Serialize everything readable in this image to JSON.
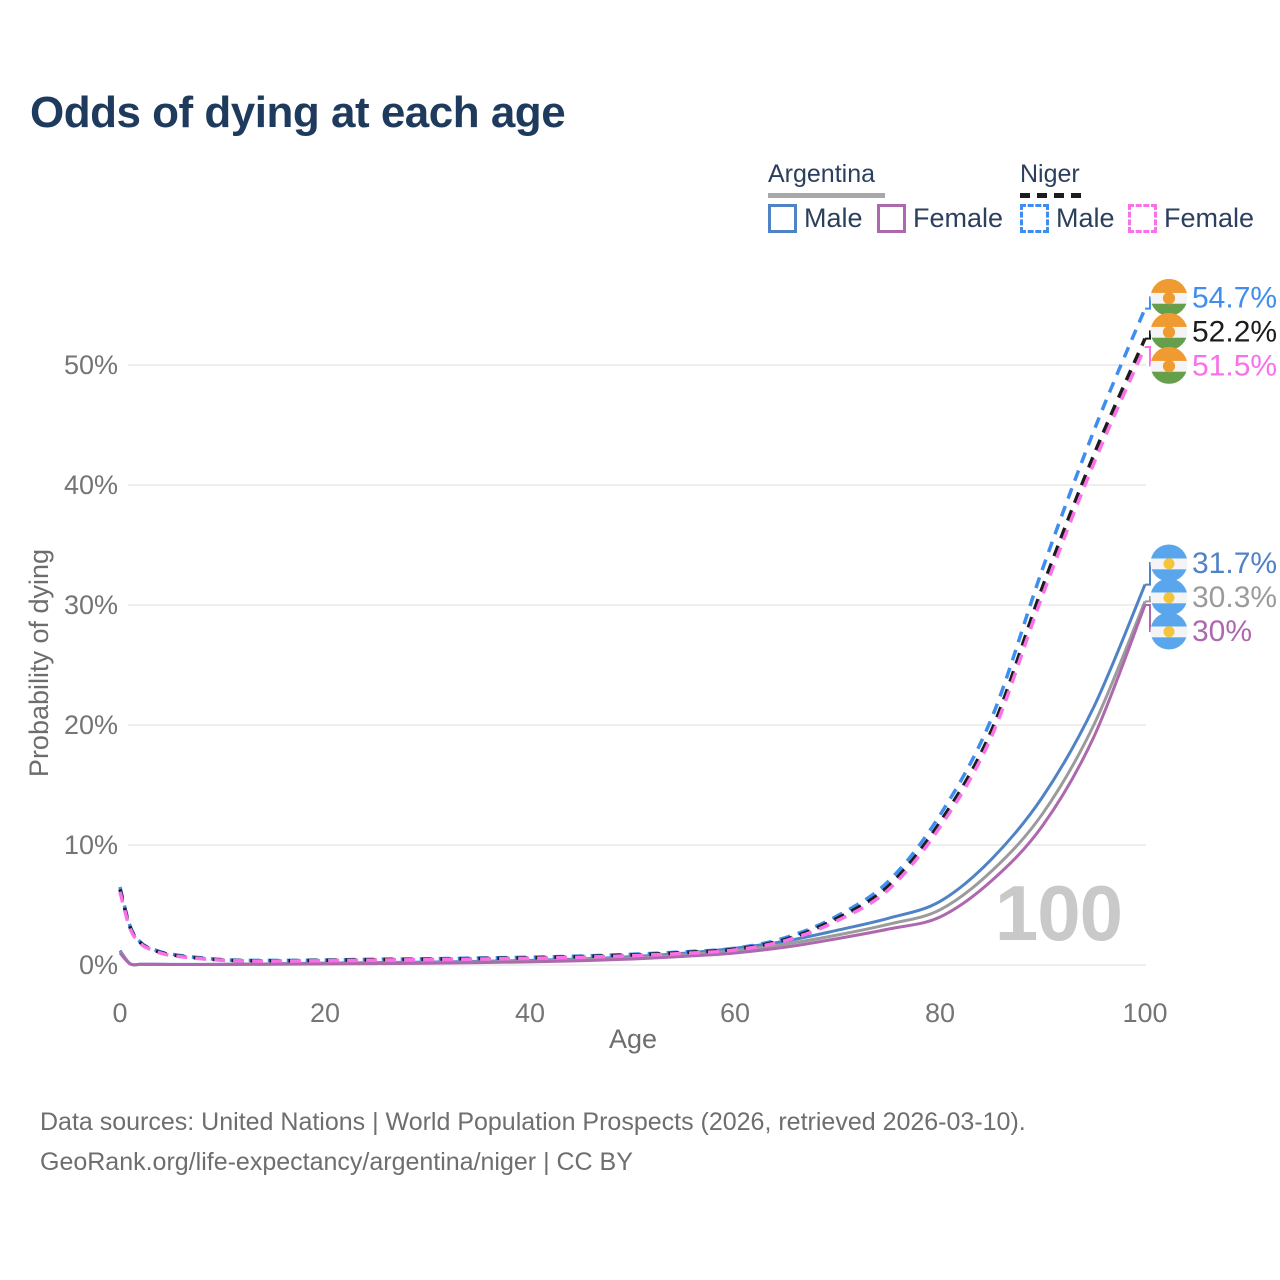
{
  "title": "Odds of dying at each age",
  "watermark": "100",
  "legend": {
    "groups": [
      {
        "label": "Argentina",
        "line_style": "solid",
        "underline_color": "#a8a8a8",
        "items": [
          {
            "label": "Male",
            "color": "#5082c6",
            "dashed": false
          },
          {
            "label": "Female",
            "color": "#ad68ae",
            "dashed": false
          }
        ]
      },
      {
        "label": "Niger",
        "line_style": "dashed",
        "underline_color": "#1c1c1c",
        "items": [
          {
            "label": "Male",
            "color": "#3f8eef",
            "dashed": true
          },
          {
            "label": "Female",
            "color": "#f970e8",
            "dashed": true
          }
        ]
      }
    ]
  },
  "chart_data": {
    "type": "line",
    "title": "Odds of dying at each age",
    "xlabel": "Age",
    "ylabel": "Probability of dying",
    "xlim": [
      0,
      100
    ],
    "ylim_pct": [
      0,
      56
    ],
    "grid": true,
    "x_ticks": [
      0,
      20,
      40,
      60,
      80,
      100
    ],
    "y_ticks": [
      {
        "value": 0,
        "label": "0%"
      },
      {
        "value": 10,
        "label": "10%"
      },
      {
        "value": 20,
        "label": "20%"
      },
      {
        "value": 30,
        "label": "30%"
      },
      {
        "value": 40,
        "label": "40%"
      },
      {
        "value": 50,
        "label": "50%"
      }
    ],
    "ages": [
      0,
      1,
      2,
      3,
      5,
      10,
      15,
      20,
      25,
      30,
      35,
      40,
      45,
      50,
      55,
      60,
      65,
      70,
      75,
      80,
      85,
      90,
      95,
      100
    ],
    "series": [
      {
        "name": "Niger Male",
        "country": "Niger",
        "sex": "male",
        "color": "#3f8eef",
        "dashed": true,
        "flag": "niger",
        "end_label": "54.7%",
        "values_pct": [
          6.5,
          3.2,
          1.9,
          1.4,
          0.9,
          0.45,
          0.38,
          0.42,
          0.48,
          0.52,
          0.58,
          0.65,
          0.75,
          0.9,
          1.1,
          1.4,
          2.3,
          4.1,
          7.0,
          12.5,
          20.5,
          33.0,
          44.5,
          54.7
        ]
      },
      {
        "name": "Niger Both sexes",
        "country": "Niger",
        "sex": "both",
        "color": "#1c1c1c",
        "dashed": true,
        "flag": "niger",
        "end_label": "52.2%",
        "values_pct": [
          6.3,
          3.1,
          1.85,
          1.35,
          0.85,
          0.42,
          0.35,
          0.39,
          0.44,
          0.48,
          0.54,
          0.6,
          0.7,
          0.84,
          1.03,
          1.32,
          2.15,
          3.9,
          6.6,
          11.9,
          19.5,
          31.5,
          42.5,
          52.2
        ]
      },
      {
        "name": "Niger Female",
        "country": "Niger",
        "sex": "female",
        "color": "#f970e8",
        "dashed": true,
        "flag": "niger",
        "end_label": "51.5%",
        "values_pct": [
          6.1,
          3.0,
          1.8,
          1.3,
          0.8,
          0.4,
          0.33,
          0.36,
          0.41,
          0.45,
          0.5,
          0.56,
          0.65,
          0.78,
          0.97,
          1.25,
          2.05,
          3.7,
          6.3,
          11.5,
          19.0,
          30.8,
          41.8,
          51.5
        ]
      },
      {
        "name": "Argentina Male",
        "country": "Argentina",
        "sex": "male",
        "color": "#5082c6",
        "dashed": false,
        "flag": "argentina",
        "end_label": "31.7%",
        "values_pct": [
          1.2,
          0.1,
          0.07,
          0.06,
          0.05,
          0.06,
          0.1,
          0.16,
          0.2,
          0.24,
          0.3,
          0.38,
          0.5,
          0.7,
          0.98,
          1.4,
          2.0,
          2.9,
          3.9,
          5.3,
          8.8,
          14.0,
          21.5,
          31.7
        ]
      },
      {
        "name": "Argentina Both sexes",
        "country": "Argentina",
        "sex": "both",
        "color": "#9b9b9b",
        "dashed": false,
        "flag": "argentina",
        "end_label": "30.3%",
        "values_pct": [
          1.1,
          0.09,
          0.06,
          0.05,
          0.045,
          0.05,
          0.08,
          0.12,
          0.16,
          0.19,
          0.25,
          0.32,
          0.43,
          0.6,
          0.85,
          1.2,
          1.75,
          2.5,
          3.4,
          4.6,
          7.8,
          12.6,
          20.0,
          30.3
        ]
      },
      {
        "name": "Argentina Female",
        "country": "Argentina",
        "sex": "female",
        "color": "#ad68ae",
        "dashed": false,
        "flag": "argentina",
        "end_label": "30%",
        "values_pct": [
          1.0,
          0.08,
          0.06,
          0.05,
          0.04,
          0.045,
          0.07,
          0.09,
          0.12,
          0.15,
          0.2,
          0.26,
          0.36,
          0.5,
          0.72,
          1.0,
          1.5,
          2.2,
          3.0,
          4.0,
          7.0,
          11.6,
          19.0,
          30.0
        ]
      }
    ]
  },
  "flags": {
    "niger": {
      "top": "#f09b32",
      "middle": "#f4f4f6",
      "bottom": "#669f4b",
      "disc": "#f09b32"
    },
    "argentina": {
      "top": "#5aa6ec",
      "middle": "#f4f4f6",
      "bottom": "#5aa6ec",
      "sun": "#f6c33c"
    }
  },
  "footer": {
    "line1": "Data sources: United Nations | World Population Prospects (2026, retrieved 2026-03-10).",
    "line2": "GeoRank.org/life-expectancy/argentina/niger | CC BY"
  }
}
